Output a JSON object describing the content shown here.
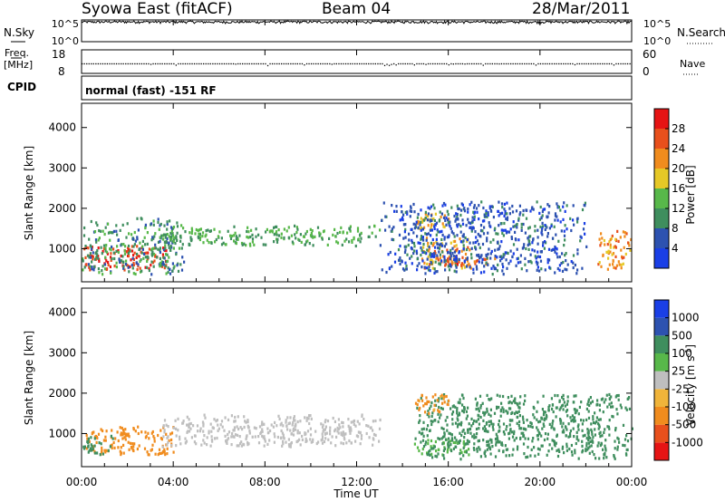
{
  "header": {
    "station_title": "Syowa East (fitACF)",
    "beam": "Beam 04",
    "date": "28/Mar/2011"
  },
  "noise_panel": {
    "left_label": "N.Sky",
    "right_label": "N.Search",
    "ticks": [
      "10^5",
      "10^0"
    ],
    "right_ticks": [
      "10^5",
      "10^0"
    ]
  },
  "freq_panel": {
    "left_label_line1": "Freq.",
    "left_label_line2": "[MHz]",
    "left_ticks": [
      "18",
      "8"
    ],
    "right_label": "Nave",
    "right_ticks": [
      "60",
      "0"
    ]
  },
  "cpid_panel": {
    "label": "CPID",
    "value": "normal (fast) -151 RF"
  },
  "axes": {
    "x_ticks": [
      "00:00",
      "04:00",
      "08:00",
      "12:00",
      "16:00",
      "20:00",
      "00:00"
    ],
    "xlabel": "Time UT",
    "ylabel": "Slant Range [km]",
    "y_ticks": [
      "1000",
      "2000",
      "3000",
      "4000"
    ]
  },
  "power_colorbar": {
    "label": "Power [dB]",
    "ticks": [
      "4",
      "8",
      "12",
      "16",
      "20",
      "24",
      "28"
    ],
    "colors": [
      "#1a3fe6",
      "#2d52b0",
      "#3f8e5e",
      "#58b84a",
      "#e6c826",
      "#f08c1e",
      "#e8501c",
      "#e61414"
    ]
  },
  "velocity_colorbar": {
    "label": "Velocity [m s",
    "label_sup": "-1",
    "label_end": "]",
    "ticks": [
      "1000",
      "500",
      "100",
      "25",
      "-25",
      "-100",
      "-500",
      "-1000"
    ],
    "colors": [
      "#1a3fe6",
      "#2d52b0",
      "#3f8e5e",
      "#58b84a",
      "#bfbfbf",
      "#f0b43a",
      "#f08c1e",
      "#e8501c",
      "#e61414"
    ]
  },
  "chart_data": [
    {
      "type": "line",
      "title": "",
      "xlabel": "",
      "ylabel": "N.Sky",
      "x_range_hours_ut": [
        0,
        24
      ],
      "y_scale": "log",
      "ylim": [
        "10^0",
        "10^5"
      ],
      "series": [
        {
          "values_ut": [
            0,
            2,
            4,
            6,
            8,
            10,
            12,
            14,
            16,
            18,
            20,
            22,
            24
          ],
          "values": [
            30000,
            32000,
            31000,
            29000,
            30000,
            31000,
            30000,
            32000,
            30000,
            29000,
            31000,
            30000,
            30000
          ]
        }
      ]
    },
    {
      "type": "scatter",
      "title": "",
      "ylabel": "Freq. [MHz]",
      "x_range_hours_ut": [
        0,
        24
      ],
      "ylim": [
        8,
        18
      ],
      "series": [
        {
          "values_ut": [
            0,
            4,
            8,
            12,
            16,
            20,
            24
          ],
          "values": [
            12.3,
            12.3,
            12.3,
            12.3,
            12.3,
            12.3,
            12.3
          ]
        }
      ]
    },
    {
      "type": "heatmap",
      "title": "",
      "quantity": "Power [dB]",
      "xlabel": "Time UT",
      "ylabel": "Slant Range [km]",
      "x_range_hours_ut": [
        0,
        24
      ],
      "ylim": [
        180,
        4600
      ],
      "regions": [
        {
          "ut_start": 0.0,
          "ut_end": 3.8,
          "range_min": 500,
          "range_max": 1100,
          "power_db": 28
        },
        {
          "ut_start": 0.0,
          "ut_end": 4.5,
          "range_min": 400,
          "range_max": 1800,
          "power_db": 10
        },
        {
          "ut_start": 3.5,
          "ut_end": 13.0,
          "range_min": 1100,
          "range_max": 1600,
          "power_db": 12
        },
        {
          "ut_start": 14.8,
          "ut_end": 17.0,
          "range_min": 500,
          "range_max": 1300,
          "power_db": 22
        },
        {
          "ut_start": 15.5,
          "ut_end": 18.0,
          "range_min": 600,
          "range_max": 800,
          "power_db": 26
        },
        {
          "ut_start": 14.5,
          "ut_end": 16.0,
          "range_min": 1500,
          "range_max": 1900,
          "power_db": 20
        },
        {
          "ut_start": 22.5,
          "ut_end": 24.0,
          "range_min": 500,
          "range_max": 1500,
          "power_db": 22
        },
        {
          "ut_start": 13.0,
          "ut_end": 22.0,
          "range_min": 400,
          "range_max": 2200,
          "power_db": 6
        }
      ]
    },
    {
      "type": "heatmap",
      "title": "",
      "quantity": "Velocity [m s-1]",
      "xlabel": "Time UT",
      "ylabel": "Slant Range [km]",
      "x_range_hours_ut": [
        0,
        24
      ],
      "ylim": [
        180,
        4600
      ],
      "regions": [
        {
          "ut_start": 0.0,
          "ut_end": 4.0,
          "range_min": 500,
          "range_max": 1200,
          "velocity_ms": -300
        },
        {
          "ut_start": 0.0,
          "ut_end": 1.5,
          "range_min": 500,
          "range_max": 1000,
          "velocity_ms": 200
        },
        {
          "ut_start": 3.5,
          "ut_end": 13.0,
          "range_min": 700,
          "range_max": 1500,
          "velocity_ms": 0
        },
        {
          "ut_start": 14.5,
          "ut_end": 17.0,
          "range_min": 500,
          "range_max": 900,
          "velocity_ms": 80
        },
        {
          "ut_start": 14.5,
          "ut_end": 24.0,
          "range_min": 400,
          "range_max": 2000,
          "velocity_ms": 300
        },
        {
          "ut_start": 14.5,
          "ut_end": 16.0,
          "range_min": 1500,
          "range_max": 2000,
          "velocity_ms": -150
        }
      ]
    }
  ]
}
